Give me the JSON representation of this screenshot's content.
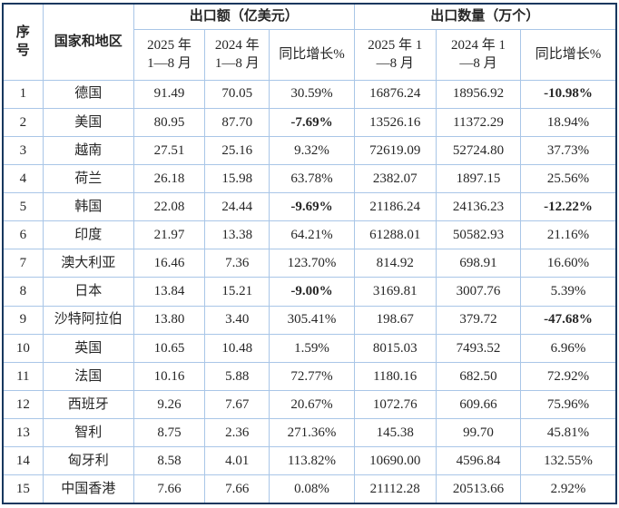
{
  "colors": {
    "border_outer": "#17375e",
    "border_inner": "#a9c6e7",
    "text": "#262626",
    "negative": "#fe0000",
    "background": "#ffffff"
  },
  "table": {
    "header": {
      "col_serial": "序\n号",
      "col_country": "国家和地区",
      "group_value": "出口额（亿美元）",
      "group_qty": "出口数量（万个）",
      "value_2025": "2025 年\n1—8 月",
      "value_2024": "2024 年\n1—8 月",
      "value_growth": "同比增长%",
      "qty_2025": "2025 年 1\n—8 月",
      "qty_2024": "2024 年 1\n—8 月",
      "qty_growth": "同比增长%"
    },
    "rows": [
      {
        "no": "1",
        "country": "德国",
        "v2025": "91.49",
        "v2024": "70.05",
        "vg": "30.59%",
        "vg_neg": false,
        "q2025": "16876.24",
        "q2024": "18956.92",
        "qg": "-10.98%",
        "qg_neg": true
      },
      {
        "no": "2",
        "country": "美国",
        "v2025": "80.95",
        "v2024": "87.70",
        "vg": "-7.69%",
        "vg_neg": true,
        "q2025": "13526.16",
        "q2024": "11372.29",
        "qg": "18.94%",
        "qg_neg": false
      },
      {
        "no": "3",
        "country": "越南",
        "v2025": "27.51",
        "v2024": "25.16",
        "vg": "9.32%",
        "vg_neg": false,
        "q2025": "72619.09",
        "q2024": "52724.80",
        "qg": "37.73%",
        "qg_neg": false
      },
      {
        "no": "4",
        "country": "荷兰",
        "v2025": "26.18",
        "v2024": "15.98",
        "vg": "63.78%",
        "vg_neg": false,
        "q2025": "2382.07",
        "q2024": "1897.15",
        "qg": "25.56%",
        "qg_neg": false
      },
      {
        "no": "5",
        "country": "韩国",
        "v2025": "22.08",
        "v2024": "24.44",
        "vg": "-9.69%",
        "vg_neg": true,
        "q2025": "21186.24",
        "q2024": "24136.23",
        "qg": "-12.22%",
        "qg_neg": true
      },
      {
        "no": "6",
        "country": "印度",
        "v2025": "21.97",
        "v2024": "13.38",
        "vg": "64.21%",
        "vg_neg": false,
        "q2025": "61288.01",
        "q2024": "50582.93",
        "qg": "21.16%",
        "qg_neg": false
      },
      {
        "no": "7",
        "country": "澳大利亚",
        "v2025": "16.46",
        "v2024": "7.36",
        "vg": "123.70%",
        "vg_neg": false,
        "q2025": "814.92",
        "q2024": "698.91",
        "qg": "16.60%",
        "qg_neg": false
      },
      {
        "no": "8",
        "country": "日本",
        "v2025": "13.84",
        "v2024": "15.21",
        "vg": "-9.00%",
        "vg_neg": true,
        "q2025": "3169.81",
        "q2024": "3007.76",
        "qg": "5.39%",
        "qg_neg": false
      },
      {
        "no": "9",
        "country": "沙特阿拉伯",
        "v2025": "13.80",
        "v2024": "3.40",
        "vg": "305.41%",
        "vg_neg": false,
        "q2025": "198.67",
        "q2024": "379.72",
        "qg": "-47.68%",
        "qg_neg": true
      },
      {
        "no": "10",
        "country": "英国",
        "v2025": "10.65",
        "v2024": "10.48",
        "vg": "1.59%",
        "vg_neg": false,
        "q2025": "8015.03",
        "q2024": "7493.52",
        "qg": "6.96%",
        "qg_neg": false
      },
      {
        "no": "11",
        "country": "法国",
        "v2025": "10.16",
        "v2024": "5.88",
        "vg": "72.77%",
        "vg_neg": false,
        "q2025": "1180.16",
        "q2024": "682.50",
        "qg": "72.92%",
        "qg_neg": false
      },
      {
        "no": "12",
        "country": "西班牙",
        "v2025": "9.26",
        "v2024": "7.67",
        "vg": "20.67%",
        "vg_neg": false,
        "q2025": "1072.76",
        "q2024": "609.66",
        "qg": "75.96%",
        "qg_neg": false
      },
      {
        "no": "13",
        "country": "智利",
        "v2025": "8.75",
        "v2024": "2.36",
        "vg": "271.36%",
        "vg_neg": false,
        "q2025": "145.38",
        "q2024": "99.70",
        "qg": "45.81%",
        "qg_neg": false
      },
      {
        "no": "14",
        "country": "匈牙利",
        "v2025": "8.58",
        "v2024": "4.01",
        "vg": "113.82%",
        "vg_neg": false,
        "q2025": "10690.00",
        "q2024": "4596.84",
        "qg": "132.55%",
        "qg_neg": false
      },
      {
        "no": "15",
        "country": "中国香港",
        "v2025": "7.66",
        "v2024": "7.66",
        "vg": "0.08%",
        "vg_neg": false,
        "q2025": "21112.28",
        "q2024": "20513.66",
        "qg": "2.92%",
        "qg_neg": false
      }
    ]
  }
}
